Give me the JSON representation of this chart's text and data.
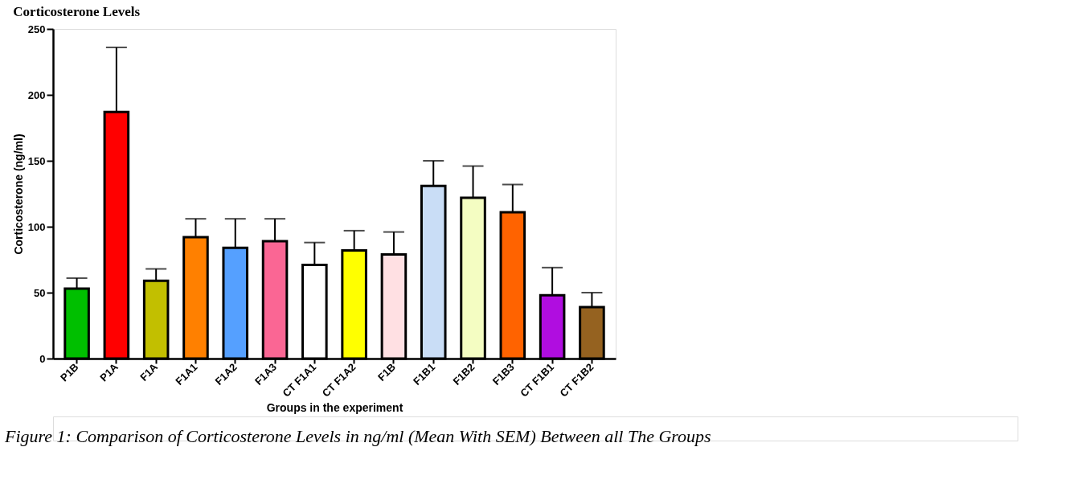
{
  "chart_data": {
    "type": "bar",
    "title": "Corticosterone Levels",
    "xlabel": "Groups in the experiment",
    "ylabel": "Corticosterone (ng/ml)",
    "categories": [
      "P1B",
      "P1A",
      "F1A",
      "F1A1",
      "F1A2",
      "F1A3",
      "CT F1A1",
      "CT F1A2",
      "F1B",
      "F1B1",
      "F1B2",
      "F1B3",
      "CT F1B1",
      "CT F1B2"
    ],
    "values": [
      53,
      187,
      59,
      92,
      84,
      89,
      71,
      82,
      79,
      131,
      122,
      111,
      48,
      39
    ],
    "errors": [
      [
        53,
        61
      ],
      [
        187,
        236
      ],
      [
        59,
        68
      ],
      [
        92,
        106
      ],
      [
        84,
        106
      ],
      [
        89,
        106
      ],
      [
        71,
        88
      ],
      [
        82,
        97
      ],
      [
        79,
        96
      ],
      [
        131,
        150
      ],
      [
        122,
        146
      ],
      [
        111,
        132
      ],
      [
        48,
        69
      ],
      [
        39,
        50
      ]
    ],
    "colors": [
      "#00bf00",
      "#ff0000",
      "#c2bf00",
      "#ff8000",
      "#55a0ff",
      "#fa6694",
      "#ffffff",
      "#ffff00",
      "#ffe0e3",
      "#c9ddf6",
      "#f4fdc2",
      "#ff6300",
      "#b00de0",
      "#956220"
    ],
    "ylim": [
      0,
      250
    ],
    "yticks": [
      0,
      50,
      100,
      150,
      200,
      250
    ],
    "grid": false,
    "legend": false,
    "annotations": [
      "Figure 1: Comparison of Corticosterone Levels in ng/ml (Mean With SEM) Between all The Groups"
    ]
  }
}
